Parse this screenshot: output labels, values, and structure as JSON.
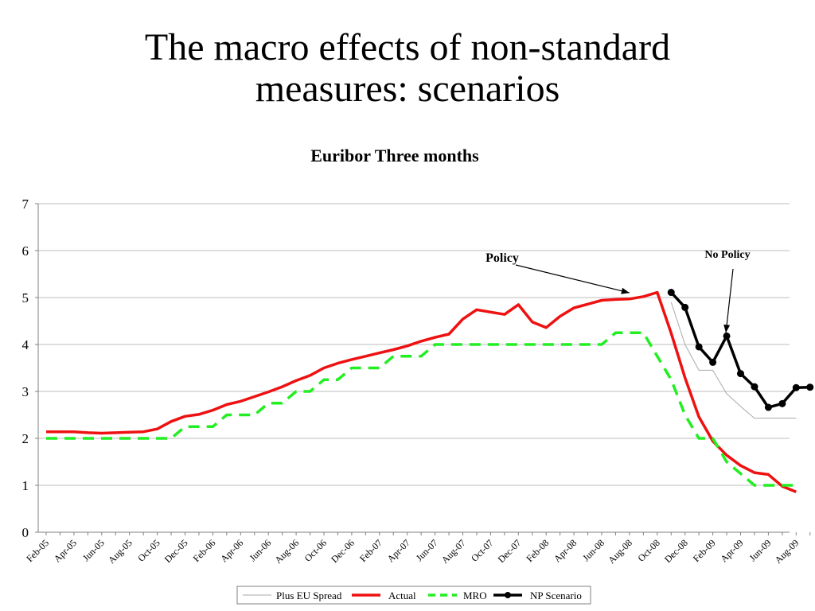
{
  "slide": {
    "title_line1": "The macro effects of non-standard",
    "title_line2": "measures: scenarios"
  },
  "chart_data": {
    "type": "line",
    "title": "Euribor Three months",
    "xlabel": "",
    "ylabel": "",
    "ylim": [
      0,
      7
    ],
    "yticks": [
      0,
      1,
      2,
      3,
      4,
      5,
      6,
      7
    ],
    "grid": true,
    "legend_position": "bottom",
    "x_tick_labels": [
      "Feb-05",
      "Apr-05",
      "Jun-05",
      "Aug-05",
      "Oct-05",
      "Dec-05",
      "Feb-06",
      "Apr-06",
      "Jun-06",
      "Aug-06",
      "Oct-06",
      "Dec-06",
      "Feb-07",
      "Apr-07",
      "Jun-07",
      "Aug-07",
      "Oct-07",
      "Dec-07",
      "Feb-08",
      "Apr-08",
      "Jun-08",
      "Aug-08",
      "Oct-08",
      "Dec-08",
      "Feb-09",
      "Apr-09",
      "Jun-09",
      "Aug-09"
    ],
    "months": [
      "Feb-05",
      "Mar-05",
      "Apr-05",
      "May-05",
      "Jun-05",
      "Jul-05",
      "Aug-05",
      "Sep-05",
      "Oct-05",
      "Nov-05",
      "Dec-05",
      "Jan-06",
      "Feb-06",
      "Mar-06",
      "Apr-06",
      "May-06",
      "Jun-06",
      "Jul-06",
      "Aug-06",
      "Sep-06",
      "Oct-06",
      "Nov-06",
      "Dec-06",
      "Jan-07",
      "Feb-07",
      "Mar-07",
      "Apr-07",
      "May-07",
      "Jun-07",
      "Jul-07",
      "Aug-07",
      "Sep-07",
      "Oct-07",
      "Nov-07",
      "Dec-07",
      "Jan-08",
      "Feb-08",
      "Mar-08",
      "Apr-08",
      "May-08",
      "Jun-08",
      "Jul-08",
      "Aug-08",
      "Sep-08",
      "Oct-08",
      "Nov-08",
      "Dec-08",
      "Jan-09",
      "Feb-09",
      "Mar-09",
      "Apr-09",
      "May-09",
      "Jun-09",
      "Jul-09",
      "Aug-09",
      "Sep-09"
    ],
    "series": [
      {
        "name": "Plus EU Spread",
        "color": "#aaaaaa",
        "style": "thin",
        "start_month": "Nov-08",
        "values": [
          4.9,
          4.0,
          3.45,
          3.45,
          2.95,
          2.68,
          2.43,
          2.43,
          2.43,
          2.43
        ]
      },
      {
        "name": "Actual",
        "color": "#ee1111",
        "style": "solid",
        "start_month": "Feb-05",
        "values": [
          2.14,
          2.14,
          2.14,
          2.12,
          2.11,
          2.12,
          2.13,
          2.14,
          2.2,
          2.36,
          2.47,
          2.51,
          2.6,
          2.72,
          2.79,
          2.89,
          2.99,
          3.1,
          3.23,
          3.34,
          3.5,
          3.6,
          3.68,
          3.75,
          3.82,
          3.89,
          3.97,
          4.07,
          4.15,
          4.22,
          4.54,
          4.74,
          4.69,
          4.64,
          4.85,
          4.48,
          4.36,
          4.6,
          4.78,
          4.86,
          4.94,
          4.96,
          4.97,
          5.02,
          5.11,
          4.24,
          3.29,
          2.46,
          1.94,
          1.64,
          1.42,
          1.27,
          1.23,
          0.98,
          0.86
        ]
      },
      {
        "name": "MRO",
        "color": "#22ee22",
        "style": "dashed",
        "start_month": "Feb-05",
        "values": [
          2,
          2,
          2,
          2,
          2,
          2,
          2,
          2,
          2,
          2,
          2.25,
          2.25,
          2.25,
          2.5,
          2.5,
          2.5,
          2.75,
          2.75,
          3,
          3,
          3.25,
          3.25,
          3.5,
          3.5,
          3.5,
          3.75,
          3.75,
          3.75,
          4,
          4,
          4,
          4,
          4,
          4,
          4,
          4,
          4,
          4,
          4,
          4,
          4,
          4.25,
          4.25,
          4.25,
          3.75,
          3.25,
          2.5,
          2,
          2,
          1.5,
          1.25,
          1,
          1,
          1,
          1
        ]
      },
      {
        "name": "NP Scenario",
        "color": "#000000",
        "style": "solid-markers",
        "start_month": "Nov-08",
        "values": [
          5.11,
          4.79,
          3.95,
          3.62,
          4.18,
          3.38,
          3.1,
          2.66,
          2.74,
          3.08,
          3.09
        ]
      }
    ],
    "annotations": [
      {
        "text": "Policy",
        "arrow_to_month": "Aug-08",
        "arrow_to_value": 5.1
      },
      {
        "text": "No Policy",
        "arrow_to_month": "Mar-09",
        "arrow_to_value": 4.25
      }
    ]
  }
}
